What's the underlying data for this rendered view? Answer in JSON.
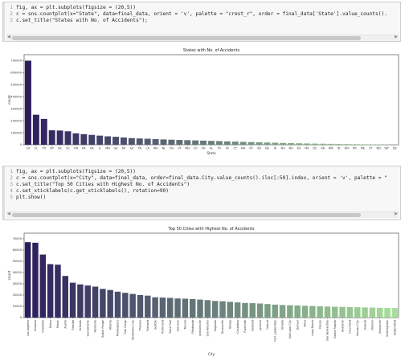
{
  "notebook": {
    "cell1": {
      "lines": [
        {
          "num": "1",
          "text": "fig, ax = plt.subplots(figsize = (20,5))"
        },
        {
          "num": "2",
          "text": "c = sns.countplot(x=\"State\", data=final_data, orient = 'v', palette = \"crest_r\", order = final_data['State'].value_counts()."
        },
        {
          "num": "3",
          "text": "c.set_title(\"States with No. of Accidents\");"
        }
      ]
    },
    "cell2": {
      "lines": [
        {
          "num": "1",
          "text": "fig, ax = plt.subplots(figsize = (20,5))"
        },
        {
          "num": "2",
          "text": "c = sns.countplot(x=\"City\", data=final_data, order=final_data.City.value_counts().iloc[:50].index, orient = 'v', palette = \""
        },
        {
          "num": "3",
          "text": "c.set_title(\"Top 50 Cities with Highest No. of Accidents\")"
        },
        {
          "num": "4",
          "text": "c.set_xticklabels(c.get_xticklabels(), rotation=90)"
        },
        {
          "num": "5",
          "text": "plt.show()"
        }
      ]
    },
    "scroll_arrows": {
      "left": "◀",
      "right": "▶"
    }
  },
  "chart_data": [
    {
      "type": "bar",
      "title": "States with No. of Accidents",
      "xlabel": "State",
      "ylabel": "count",
      "ylim": [
        0,
        750000
      ],
      "yticks": [
        0,
        100000,
        200000,
        300000,
        400000,
        500000,
        600000,
        700000
      ],
      "grid": false,
      "palette": {
        "start": "#2c1e5c",
        "end": "#a6df9a"
      },
      "categories": [
        "CA",
        "FL",
        "TX",
        "NY",
        "NC",
        "SC",
        "OR",
        "PA",
        "VA",
        "IL",
        "MN",
        "GA",
        "MI",
        "AZ",
        "TN",
        "LA",
        "WA",
        "NJ",
        "OH",
        "UT",
        "MD",
        "CO",
        "OK",
        "AL",
        "TO",
        "IN",
        "CT",
        "MA",
        "KY",
        "WI",
        "NE",
        "IA",
        "NV",
        "NH",
        "KS",
        "MS",
        "DC",
        "AR",
        "NM",
        "ID",
        "WV",
        "MT",
        "ME",
        "VT",
        "ND",
        "WY",
        "SD"
      ],
      "values": [
        700000,
        250000,
        215000,
        120000,
        118000,
        112000,
        95000,
        88000,
        82000,
        76000,
        70000,
        66000,
        60000,
        55000,
        52000,
        50000,
        47000,
        44000,
        42000,
        40000,
        38000,
        36000,
        34000,
        32000,
        30000,
        28000,
        26000,
        24000,
        22000,
        20000,
        18000,
        16500,
        15000,
        13500,
        12000,
        10500,
        9500,
        8500,
        7500,
        6500,
        5500,
        4500,
        3800,
        3000,
        2500,
        2000,
        1500
      ]
    },
    {
      "type": "bar",
      "title": "Top 50 Cities with Highest No. of Accidents",
      "xlabel": "City",
      "ylabel": "count",
      "ylim": [
        0,
        75000
      ],
      "yticks": [
        0,
        10000,
        20000,
        30000,
        40000,
        50000,
        60000,
        70000
      ],
      "grid": false,
      "palette": {
        "start": "#2c1e5c",
        "end": "#a6df9a"
      },
      "categories": [
        "Los Angeles",
        "Houston",
        "Charlotte",
        "Dallas",
        "Miami",
        "Austin",
        "Raleigh",
        "Orlando",
        "Sacramento",
        "Nashville",
        "Baton Rouge",
        "Atlanta",
        "Minneapolis",
        "San Diego",
        "Oklahoma City",
        "Phoenix",
        "Portland",
        "Seattle",
        "Richmond",
        "Saint Paul",
        "San Jose",
        "Tucson",
        "Pittsburgh",
        "Jacksonville",
        "San Antonio",
        "Saginaw",
        "Greenville",
        "Tampa",
        "Columbus",
        "Riverside",
        "Oakland",
        "Jackson",
        "Detroit",
        "Fort Lauderdale",
        "Omaha",
        "Salt Lake City",
        "Denver",
        "Tulsa",
        "Long Beach",
        "Fresno",
        "San Bernardino",
        "Grand Rapids",
        "Anaheim",
        "Cleveland",
        "Kansas City",
        "Hialeah",
        "Ontario",
        "Brookville",
        "Birmingham",
        "Bakersfield"
      ],
      "values": [
        67000,
        66500,
        56000,
        47500,
        47000,
        37000,
        31000,
        29500,
        28500,
        27500,
        25500,
        24500,
        23000,
        22000,
        21000,
        20000,
        19500,
        18000,
        17800,
        17500,
        17000,
        16800,
        16500,
        16000,
        15500,
        14800,
        14500,
        14000,
        13500,
        13000,
        12800,
        12500,
        12000,
        11500,
        11200,
        11000,
        10800,
        10500,
        10300,
        10000,
        9800,
        9600,
        9500,
        9300,
        9200,
        9000,
        8900,
        8700,
        8600,
        8500
      ]
    }
  ]
}
